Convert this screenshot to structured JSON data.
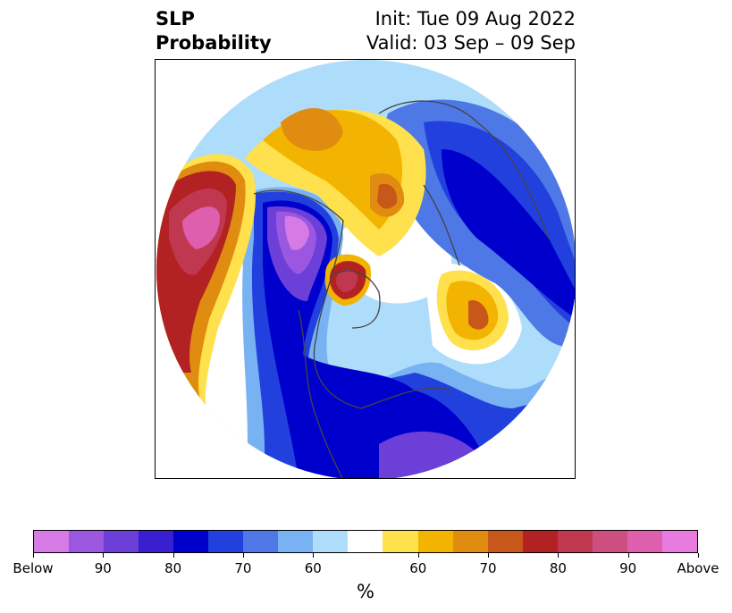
{
  "title": {
    "left_line1": "SLP",
    "left_line2": "Probability",
    "right_line1": "Init: Tue 09 Aug 2022",
    "right_line2": "Valid: 03 Sep – 09 Sep"
  },
  "colorbar": {
    "colors": [
      "#d67ae6",
      "#9b57e0",
      "#6b3fd8",
      "#3a1fd0",
      "#0000cc",
      "#2240dd",
      "#4d78e6",
      "#78b2f2",
      "#aedcfb",
      "#ffffff",
      "#ffe14d",
      "#f2b400",
      "#e08c10",
      "#c8581a",
      "#b22222",
      "#c03850",
      "#cc4f80",
      "#dd5fae",
      "#e77be0"
    ],
    "tick_labels": [
      "Below",
      "90",
      "80",
      "70",
      "60",
      "60",
      "70",
      "80",
      "90",
      "Above"
    ],
    "unit": "%"
  },
  "map": {
    "description_colors": {
      "negative": "#0000cc",
      "positive": "#b22222",
      "coast": "#444444"
    }
  }
}
